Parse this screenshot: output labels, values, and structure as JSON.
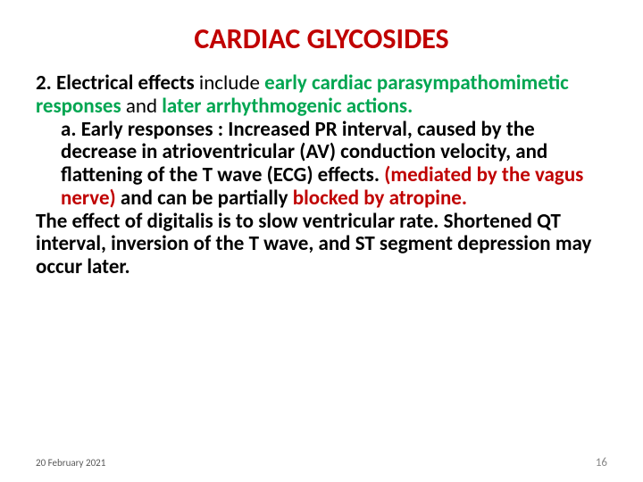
{
  "title": {
    "text": "CARDIAC GLYCOSIDES",
    "color": "#c00000",
    "fontsize": 32
  },
  "body": {
    "fontsize": 23,
    "black": "#000000",
    "green": "#00a651",
    "red": "#c00000",
    "lead_bold": "2. Electrical effects",
    "lead_mid": " include ",
    "lead_green1": "early cardiac parasympathomimetic responses",
    "lead_mid2": " and ",
    "lead_green2": "later arrhythmogenic actions.",
    "a_label": "a.  Early responses : ",
    "a_text1": "Increased PR interval, caused by the decrease in atrioventricular (AV) conduction velocity, and flattening of the T wave (ECG) effects. ",
    "a_red": "(mediated by the vagus nerve)",
    "a_text2": " and can be partially ",
    "a_red2": "blocked by atropine.",
    "tail": "The effect of digitalis is to slow ventricular rate. Shortened QT interval, inversion of the T wave, and ST segment depression may occur later."
  },
  "footer": {
    "date": "20 February 2021",
    "page": "16",
    "date_color": "#595959",
    "date_fontsize": 11,
    "page_color": "#898989",
    "page_fontsize": 13
  }
}
